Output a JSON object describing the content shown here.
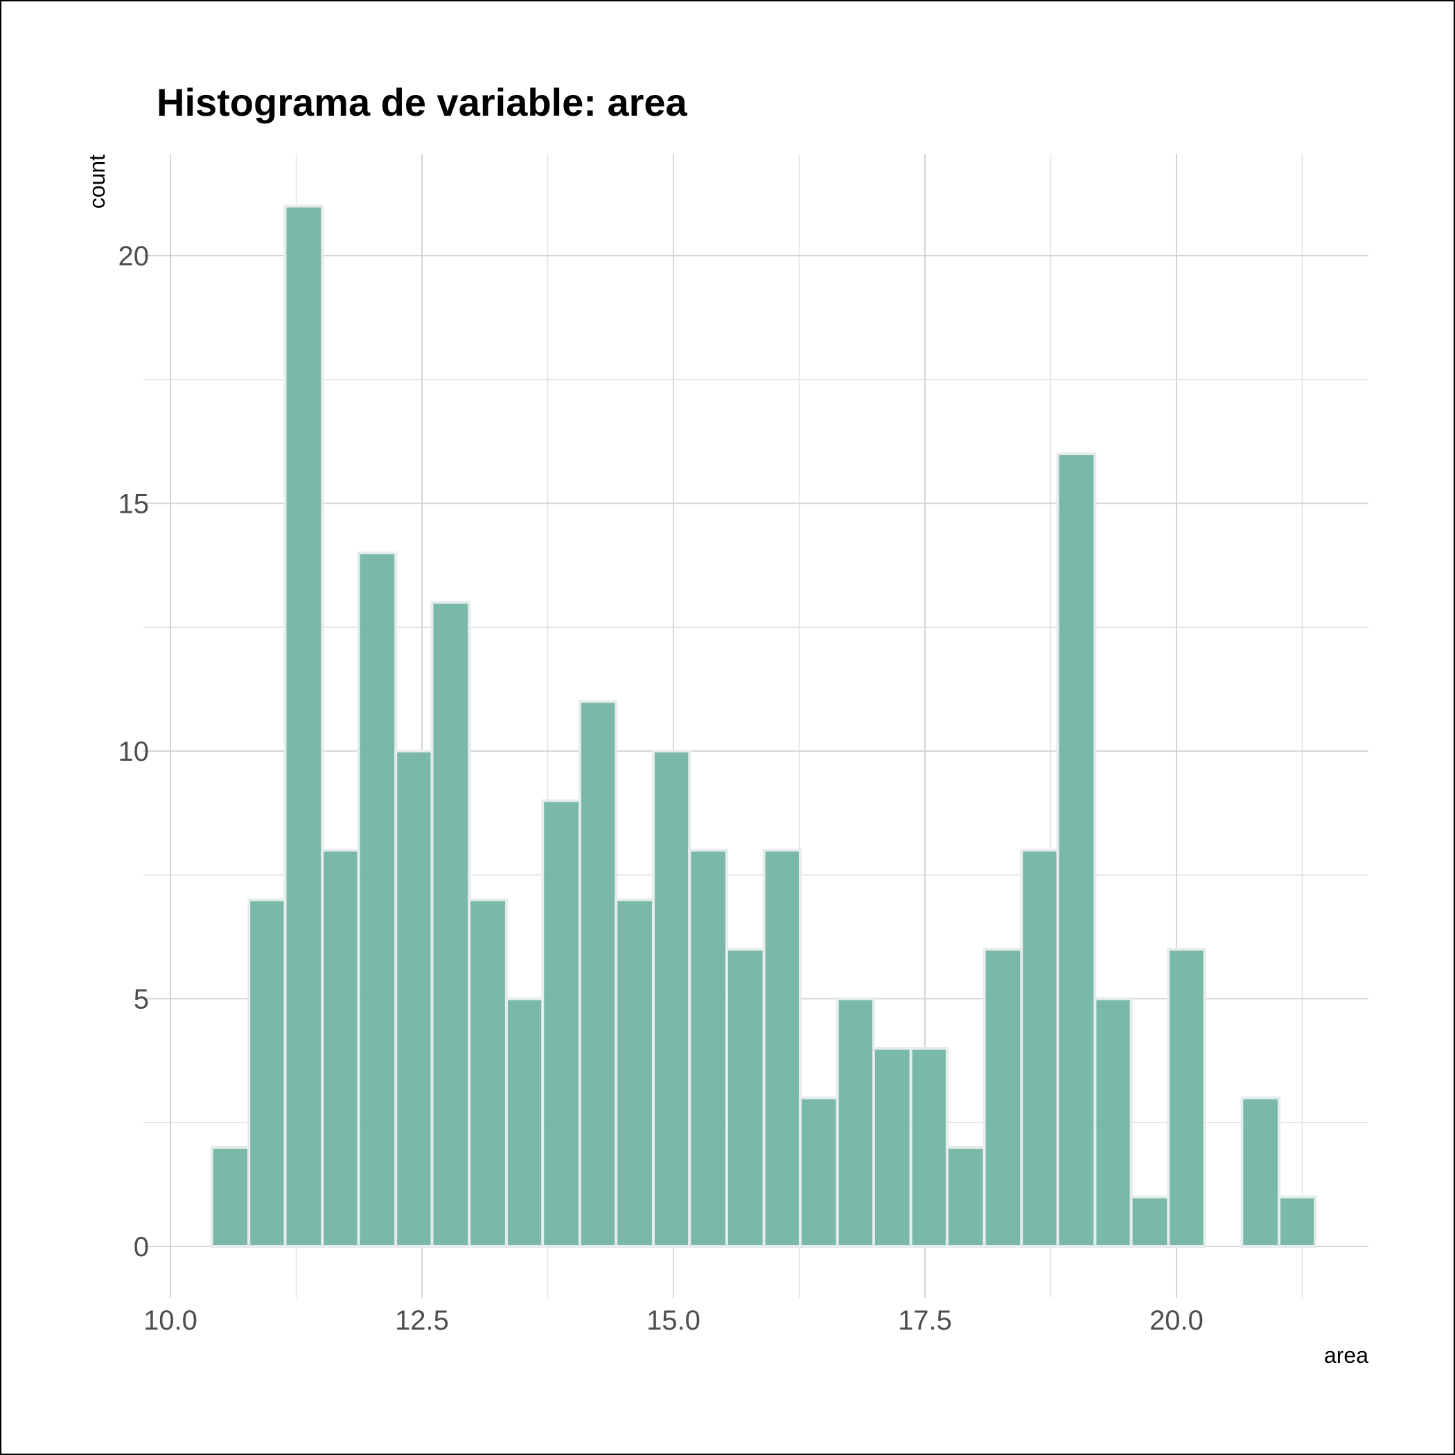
{
  "chart_data": {
    "type": "bar",
    "title": "Histograma de variable: area",
    "xlabel": "area",
    "ylabel": "count",
    "xlim": [
      10.0,
      21.9
    ],
    "ylim": [
      -0.75,
      22.05
    ],
    "x_ticks": [
      10.0,
      12.5,
      15.0,
      17.5,
      20.0
    ],
    "x_tick_labels": [
      "10.0",
      "12.5",
      "15.0",
      "17.5",
      "20.0"
    ],
    "y_ticks": [
      0,
      5,
      10,
      15,
      20
    ],
    "y_tick_labels": [
      "0",
      "5",
      "10",
      "15",
      "20"
    ],
    "grid": true,
    "bar_color": "#6fb3a0",
    "bins": [
      {
        "x0": 10.41,
        "x1": 10.78,
        "count": 2
      },
      {
        "x0": 10.78,
        "x1": 11.14,
        "count": 7
      },
      {
        "x0": 11.14,
        "x1": 11.51,
        "count": 21
      },
      {
        "x0": 11.51,
        "x1": 11.87,
        "count": 8
      },
      {
        "x0": 11.87,
        "x1": 12.24,
        "count": 14
      },
      {
        "x0": 12.24,
        "x1": 12.6,
        "count": 10
      },
      {
        "x0": 12.6,
        "x1": 12.97,
        "count": 13
      },
      {
        "x0": 12.97,
        "x1": 13.34,
        "count": 7
      },
      {
        "x0": 13.34,
        "x1": 13.7,
        "count": 5
      },
      {
        "x0": 13.7,
        "x1": 14.07,
        "count": 9
      },
      {
        "x0": 14.07,
        "x1": 14.43,
        "count": 11
      },
      {
        "x0": 14.43,
        "x1": 14.8,
        "count": 7
      },
      {
        "x0": 14.8,
        "x1": 15.16,
        "count": 10
      },
      {
        "x0": 15.16,
        "x1": 15.53,
        "count": 8
      },
      {
        "x0": 15.53,
        "x1": 15.9,
        "count": 6
      },
      {
        "x0": 15.9,
        "x1": 16.26,
        "count": 8
      },
      {
        "x0": 16.26,
        "x1": 16.63,
        "count": 3
      },
      {
        "x0": 16.63,
        "x1": 16.99,
        "count": 5
      },
      {
        "x0": 16.99,
        "x1": 17.36,
        "count": 4
      },
      {
        "x0": 17.36,
        "x1": 17.72,
        "count": 4
      },
      {
        "x0": 17.72,
        "x1": 18.09,
        "count": 2
      },
      {
        "x0": 18.09,
        "x1": 18.46,
        "count": 6
      },
      {
        "x0": 18.46,
        "x1": 18.82,
        "count": 8
      },
      {
        "x0": 18.82,
        "x1": 19.19,
        "count": 16
      },
      {
        "x0": 19.19,
        "x1": 19.55,
        "count": 5
      },
      {
        "x0": 19.55,
        "x1": 19.92,
        "count": 1
      },
      {
        "x0": 19.92,
        "x1": 20.28,
        "count": 6
      },
      {
        "x0": 20.28,
        "x1": 20.65,
        "count": 0
      },
      {
        "x0": 20.65,
        "x1": 21.02,
        "count": 3
      },
      {
        "x0": 21.02,
        "x1": 21.38,
        "count": 1
      }
    ]
  }
}
